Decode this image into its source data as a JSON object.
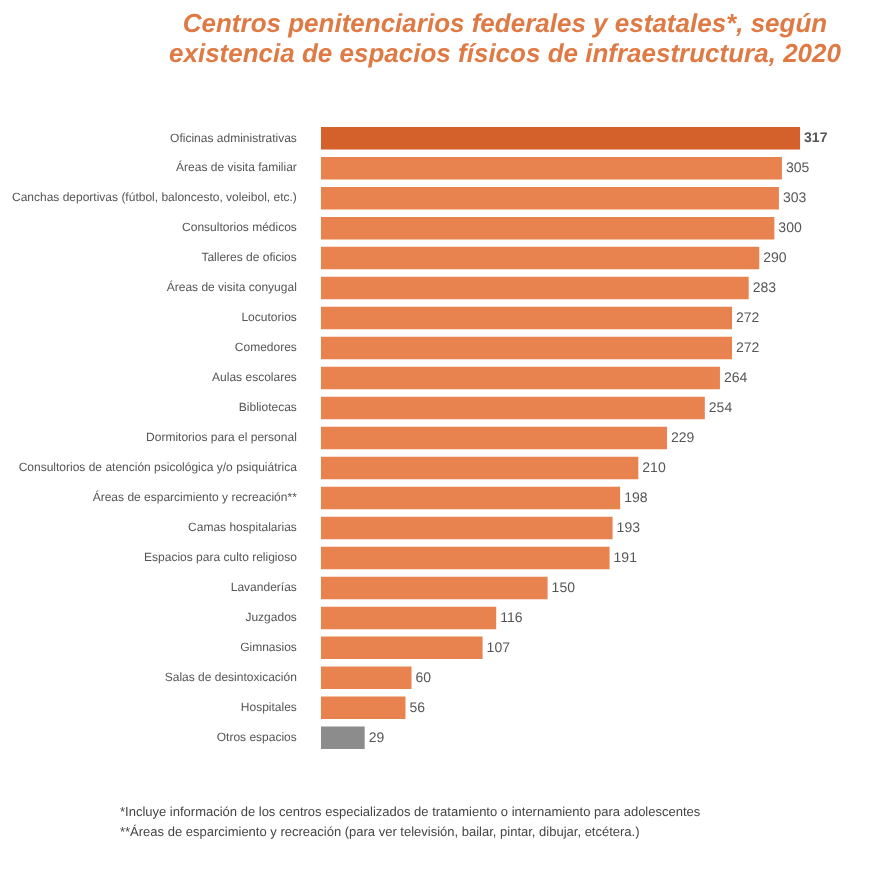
{
  "chart_data": {
    "type": "bar",
    "orientation": "horizontal",
    "title": "Centros penitenciarios federales y estatales*, según existencia de espacios físicos de infraestructura, 2020",
    "categories": [
      "Oficinas administrativas",
      "Áreas de visita familiar",
      "Canchas deportivas (fútbol, baloncesto, voleibol, etc.)",
      "Consultorios médicos",
      "Talleres de oficios",
      "Áreas de visita conyugal",
      "Locutorios",
      "Comedores",
      "Aulas escolares",
      "Bibliotecas",
      "Dormitorios para el personal",
      "Consultorios de atención psicológica y/o psiquiátrica",
      "Áreas de esparcimiento y recreación**",
      "Camas hospitalarias",
      "Espacios para culto religioso",
      "Lavanderías",
      "Juzgados",
      "Gimnasios",
      "Salas de desintoxicación",
      "Hospitales",
      "Otros espacios"
    ],
    "values": [
      317,
      305,
      303,
      300,
      290,
      283,
      272,
      272,
      264,
      254,
      229,
      210,
      198,
      193,
      191,
      150,
      116,
      107,
      60,
      56,
      29
    ],
    "colors": [
      "#d4612c",
      "#e8834f",
      "#e8834f",
      "#e8834f",
      "#e8834f",
      "#e8834f",
      "#e8834f",
      "#e8834f",
      "#e8834f",
      "#e8834f",
      "#e8834f",
      "#e8834f",
      "#e8834f",
      "#e8834f",
      "#e8834f",
      "#e8834f",
      "#e8834f",
      "#e8834f",
      "#e8834f",
      "#e8834f",
      "#8c8c8c"
    ],
    "data_labels": true,
    "annotations": [
      "*Incluye información de los centros especializados de tratamiento o internamiento para adolescentes",
      "**Áreas de esparcimiento y recreación (para ver televisión, bailar, pintar, dibujar, etcétera.)"
    ]
  }
}
